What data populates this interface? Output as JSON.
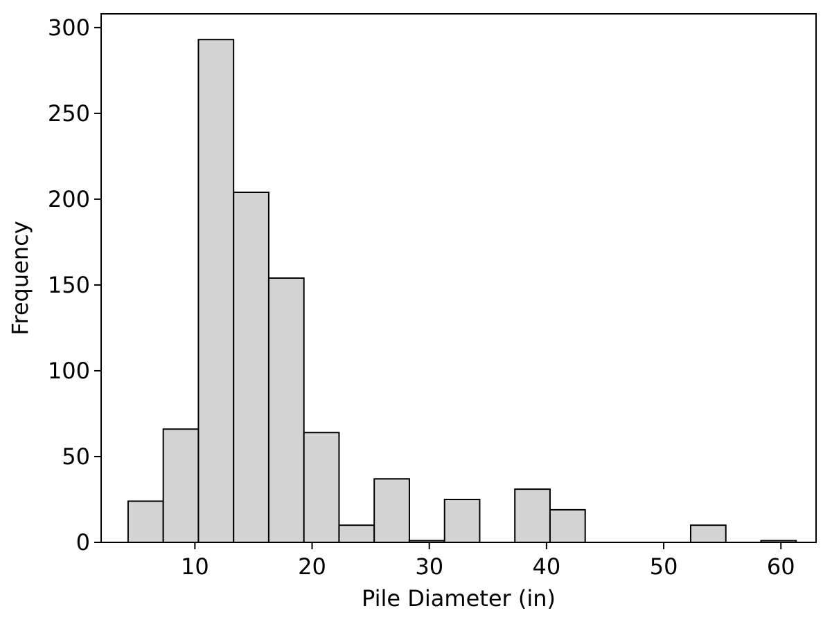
{
  "chart_data": {
    "type": "bar",
    "subtype": "histogram",
    "title": "",
    "xlabel": "Pile Diameter (in)",
    "ylabel": "Frequency",
    "xlim": [
      2,
      63
    ],
    "ylim": [
      0,
      308
    ],
    "x_ticks": [
      10,
      20,
      30,
      40,
      50,
      60
    ],
    "y_ticks": [
      0,
      50,
      100,
      150,
      200,
      250,
      300
    ],
    "grid": false,
    "legend": "none",
    "bar_fill": "#d3d3d3",
    "bar_edge": "#000000",
    "bins": [
      {
        "x0": 4.3,
        "x1": 7.3,
        "count": 24
      },
      {
        "x0": 7.3,
        "x1": 10.3,
        "count": 66
      },
      {
        "x0": 10.3,
        "x1": 13.3,
        "count": 293
      },
      {
        "x0": 13.3,
        "x1": 16.3,
        "count": 204
      },
      {
        "x0": 16.3,
        "x1": 19.3,
        "count": 154
      },
      {
        "x0": 19.3,
        "x1": 22.3,
        "count": 64
      },
      {
        "x0": 22.3,
        "x1": 25.3,
        "count": 10
      },
      {
        "x0": 25.3,
        "x1": 28.3,
        "count": 37
      },
      {
        "x0": 28.3,
        "x1": 31.3,
        "count": 1
      },
      {
        "x0": 31.3,
        "x1": 34.3,
        "count": 25
      },
      {
        "x0": 34.3,
        "x1": 37.3,
        "count": 0
      },
      {
        "x0": 37.3,
        "x1": 40.3,
        "count": 31
      },
      {
        "x0": 40.3,
        "x1": 43.3,
        "count": 19
      },
      {
        "x0": 43.3,
        "x1": 46.3,
        "count": 0
      },
      {
        "x0": 46.3,
        "x1": 49.3,
        "count": 0
      },
      {
        "x0": 49.3,
        "x1": 52.3,
        "count": 0
      },
      {
        "x0": 52.3,
        "x1": 55.3,
        "count": 10
      },
      {
        "x0": 55.3,
        "x1": 58.3,
        "count": 0
      },
      {
        "x0": 58.3,
        "x1": 61.3,
        "count": 1
      }
    ]
  }
}
